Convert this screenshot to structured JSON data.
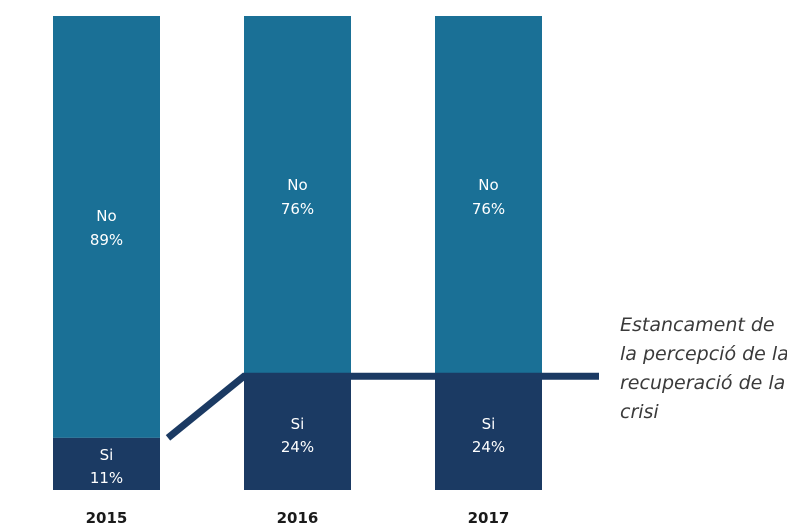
{
  "chart_data": {
    "type": "bar",
    "stacked": true,
    "categories": [
      "2015",
      "2016",
      "2017"
    ],
    "series": [
      {
        "name": "Si",
        "values": [
          11,
          24,
          24
        ],
        "labels": [
          "11%",
          "24%",
          "24%"
        ],
        "color": "#1b3a63"
      },
      {
        "name": "No",
        "values": [
          89,
          76,
          76
        ],
        "labels": [
          "89%",
          "76%",
          "76%"
        ],
        "color": "#1a7096"
      }
    ],
    "ylim": [
      0,
      100
    ],
    "grid": false,
    "legend": "none",
    "annotation": {
      "lines": [
        "Estancament de",
        "la percepció de la",
        "recuperació de la",
        "crisi"
      ],
      "line_color": "#1b3a63"
    }
  }
}
